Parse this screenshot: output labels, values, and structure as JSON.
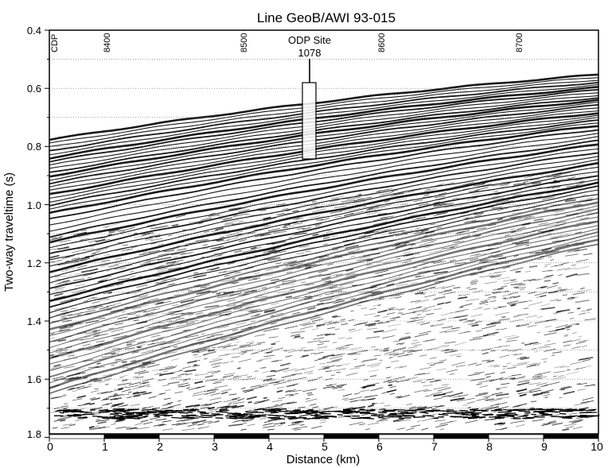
{
  "title": "Line GeoB/AWI 93-015",
  "y_axis": {
    "label": "Two-way traveltime (s)",
    "ticks": [
      "0.4",
      "0.6",
      "0.8",
      "1.0",
      "1.2",
      "1.4",
      "1.6",
      "1.8"
    ],
    "range": [
      0.4,
      1.8
    ]
  },
  "x_axis": {
    "label": "Distance (km)",
    "ticks": [
      "0",
      "1",
      "2",
      "3",
      "4",
      "5",
      "6",
      "7",
      "8",
      "9",
      "10"
    ],
    "range": [
      0,
      10
    ]
  },
  "cdp": {
    "label": "CDP",
    "ticks": [
      "8400",
      "8500",
      "8600",
      "8700"
    ]
  },
  "site": {
    "name": "ODP Site",
    "number": "1078"
  }
}
